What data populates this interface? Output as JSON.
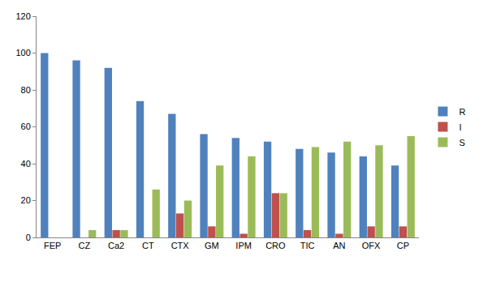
{
  "chart_data": {
    "type": "bar",
    "categories": [
      "FEP",
      "CZ",
      "Ca2",
      "CT",
      "CTX",
      "GM",
      "IPM",
      "CRO",
      "TIC",
      "AN",
      "OFX",
      "CP"
    ],
    "series": [
      {
        "name": "R",
        "color": "#4f81bd",
        "values": [
          100,
          96,
          92,
          74,
          67,
          56,
          54,
          52,
          48,
          46,
          44,
          39
        ]
      },
      {
        "name": "I",
        "color": "#c0504d",
        "values": [
          0,
          0,
          4,
          0,
          13,
          6,
          2,
          24,
          4,
          2,
          6,
          6
        ]
      },
      {
        "name": "S",
        "color": "#9bbb59",
        "values": [
          0,
          4,
          4,
          26,
          20,
          39,
          44,
          24,
          49,
          52,
          50,
          55
        ]
      }
    ],
    "ylim": [
      0,
      120
    ],
    "yticks": [
      0,
      20,
      40,
      60,
      80,
      100,
      120
    ],
    "grid": false,
    "legend": "right"
  }
}
